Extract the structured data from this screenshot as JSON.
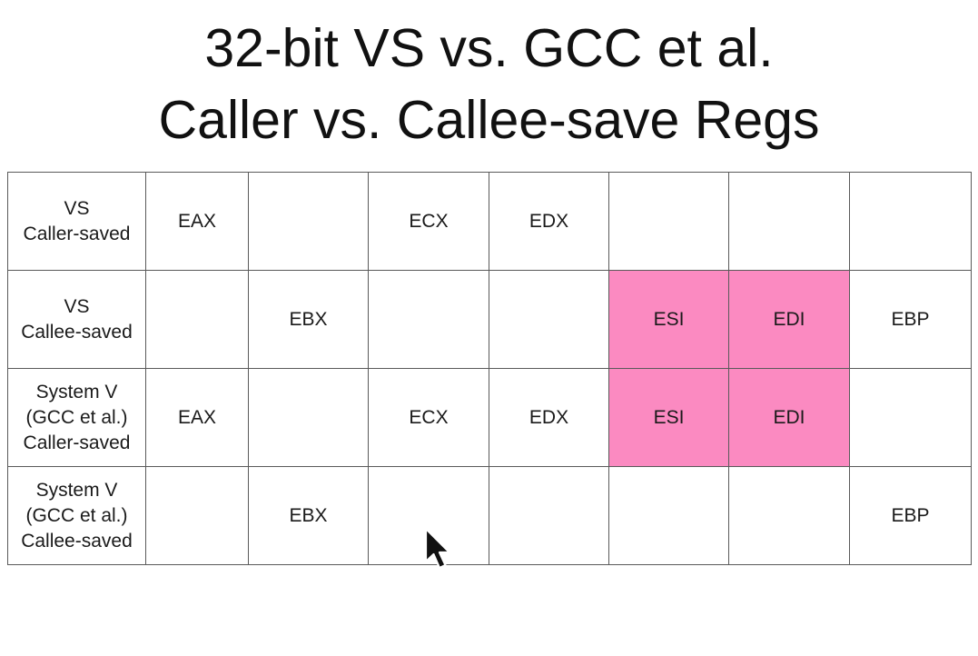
{
  "slide": {
    "title_line1": "32-bit VS vs. GCC et al.",
    "title_line2": "Caller vs. Callee-save Regs"
  },
  "table": {
    "highlight_color": "#fb8ac1",
    "rows": [
      {
        "label": "VS\nCaller-saved",
        "cells": [
          "EAX",
          "",
          "ECX",
          "EDX",
          "",
          "",
          ""
        ],
        "highlighted": [
          false,
          false,
          false,
          false,
          false,
          false,
          false
        ]
      },
      {
        "label": "VS\nCallee-saved",
        "cells": [
          "",
          "EBX",
          "",
          "",
          "ESI",
          "EDI",
          "EBP"
        ],
        "highlighted": [
          false,
          false,
          false,
          false,
          true,
          true,
          false
        ]
      },
      {
        "label": "System V\n(GCC et al.)\nCaller-saved",
        "cells": [
          "EAX",
          "",
          "ECX",
          "EDX",
          "ESI",
          "EDI",
          ""
        ],
        "highlighted": [
          false,
          false,
          false,
          false,
          true,
          true,
          false
        ]
      },
      {
        "label": "System V\n(GCC et al.)\nCallee-saved",
        "cells": [
          "",
          "EBX",
          "",
          "",
          "",
          "",
          "EBP"
        ],
        "highlighted": [
          false,
          false,
          false,
          false,
          false,
          false,
          false
        ]
      }
    ]
  },
  "cursor": {
    "icon": "mouse-pointer-icon"
  }
}
